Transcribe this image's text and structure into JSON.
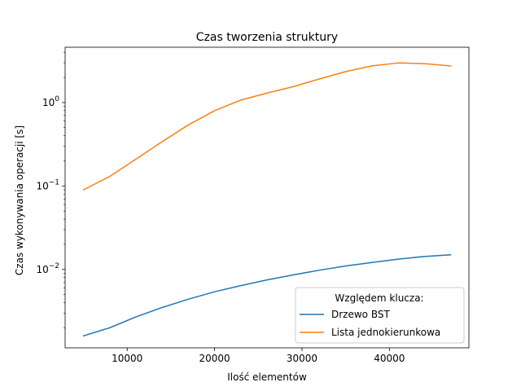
{
  "chart_data": {
    "type": "line",
    "title": "Czas tworzenia struktury",
    "xlabel": "Ilość elementów",
    "ylabel": "Czas wykonywania operacji [s]",
    "xlim": [
      2900,
      49100
    ],
    "ylim": [
      0.00115,
      4.6
    ],
    "yscale": "log",
    "grid": false,
    "x_ticks": [
      10000,
      20000,
      30000,
      40000
    ],
    "y_ticks": [
      {
        "value": 0.01,
        "base": "10",
        "exp": "−2"
      },
      {
        "value": 0.1,
        "base": "10",
        "exp": "−1"
      },
      {
        "value": 1,
        "base": "10",
        "exp": "0"
      }
    ],
    "legend": {
      "title": "Względem klucza:",
      "placement": "lower right"
    },
    "series": [
      {
        "name": "Drzewo BST",
        "color": "#1f77b4",
        "x": [
          5000,
          8000,
          11000,
          14000,
          17000,
          20000,
          23000,
          26000,
          29000,
          32000,
          35000,
          38000,
          41000,
          44000,
          47000
        ],
        "y": [
          0.0016,
          0.002,
          0.0027,
          0.0035,
          0.0044,
          0.0054,
          0.0064,
          0.0075,
          0.0086,
          0.0098,
          0.011,
          0.0121,
          0.0133,
          0.0143,
          0.015
        ]
      },
      {
        "name": "Lista jednokierunkowa",
        "color": "#ff7f0e",
        "x": [
          5000,
          8000,
          11000,
          14000,
          17000,
          20000,
          23000,
          26000,
          29000,
          32000,
          35000,
          38000,
          41000,
          44000,
          47000
        ],
        "y": [
          0.09,
          0.13,
          0.21,
          0.34,
          0.54,
          0.8,
          1.07,
          1.3,
          1.55,
          1.92,
          2.35,
          2.75,
          2.98,
          2.93,
          2.75
        ]
      }
    ]
  }
}
